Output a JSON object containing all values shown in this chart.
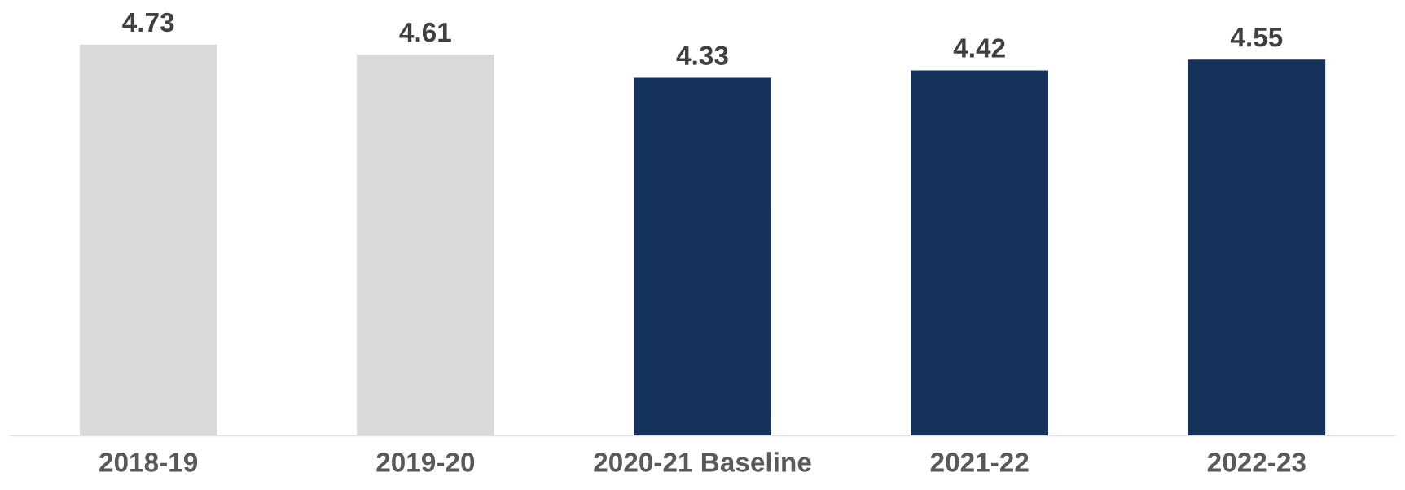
{
  "chart_data": {
    "type": "bar",
    "categories": [
      "2018-19",
      "2019-20",
      "2020-21 Baseline",
      "2021-22",
      "2022-23"
    ],
    "values": [
      4.73,
      4.61,
      4.33,
      4.42,
      4.55
    ],
    "colors": [
      "#d9d9d9",
      "#d9d9d9",
      "#14325a",
      "#14325a",
      "#14325a"
    ],
    "data_labels": true,
    "grid": false,
    "legend": false
  }
}
